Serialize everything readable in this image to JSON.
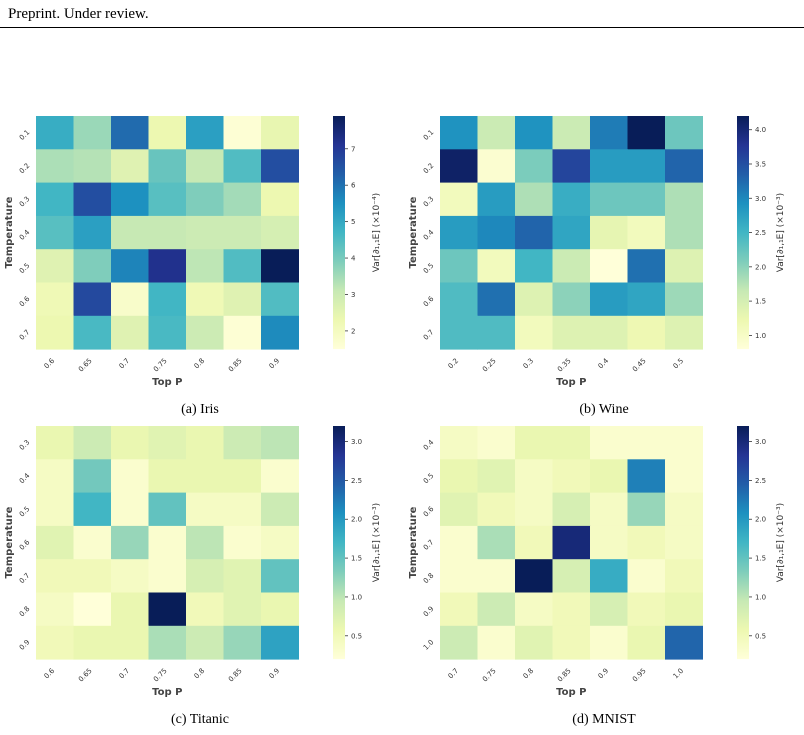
{
  "header": {
    "text": "Preprint. Under review."
  },
  "colormap": [
    "#ffffd9",
    "#edf8b1",
    "#c7e9b4",
    "#7fcdbb",
    "#41b6c4",
    "#1d91c0",
    "#225ea8",
    "#253494",
    "#081d58"
  ],
  "chart_data": [
    {
      "type": "heatmap",
      "caption": "(a) Iris",
      "xlabel": "Top P",
      "ylabel": "Temperature",
      "x": [
        "0.6",
        "0.65",
        "0.7",
        "0.75",
        "0.8",
        "0.85",
        "0.9"
      ],
      "y": [
        "0.1",
        "0.2",
        "0.3",
        "0.4",
        "0.5",
        "0.6",
        "0.7"
      ],
      "colorbar_label": "Var[∂₁,₁E] (×10⁻⁴)",
      "colorbar_ticks": [
        "2",
        "3",
        "4",
        "5",
        "6",
        "7"
      ],
      "vmin": 1.5,
      "vmax": 7.9,
      "values": [
        [
          4.9,
          3.6,
          6.1,
          2.3,
          5.2,
          1.6,
          2.4
        ],
        [
          3.4,
          3.3,
          2.6,
          4.2,
          3.1,
          4.5,
          6.6
        ],
        [
          4.7,
          6.6,
          5.5,
          4.4,
          3.9,
          3.5,
          2.3
        ],
        [
          4.4,
          5.2,
          3.1,
          3.1,
          3.0,
          3.0,
          2.8
        ],
        [
          2.6,
          3.9,
          5.7,
          7.2,
          3.2,
          4.5,
          7.9
        ],
        [
          2.2,
          6.7,
          1.8,
          4.7,
          2.2,
          2.6,
          4.5
        ],
        [
          2.3,
          4.6,
          2.6,
          4.6,
          3.0,
          1.6,
          5.6
        ]
      ]
    },
    {
      "type": "heatmap",
      "caption": "(b) Wine",
      "xlabel": "Top P",
      "ylabel": "Temperature",
      "x": [
        "0.2",
        "0.25",
        "0.3",
        "0.35",
        "0.4",
        "0.45",
        "0.5"
      ],
      "y": [
        "0.1",
        "0.2",
        "0.3",
        "0.4",
        "0.5",
        "0.6",
        "0.7"
      ],
      "colorbar_label": "Var[∂₁,₁E] (×10⁻³)",
      "colorbar_ticks": [
        "1.0",
        "1.5",
        "2.0",
        "2.5",
        "3.0",
        "3.5",
        "4.0"
      ],
      "vmin": 0.8,
      "vmax": 4.2,
      "values": [
        [
          2.9,
          1.6,
          2.9,
          1.6,
          3.1,
          4.2,
          2.2
        ],
        [
          4.1,
          0.9,
          2.1,
          3.6,
          2.8,
          2.8,
          3.3
        ],
        [
          1.1,
          2.8,
          1.8,
          2.6,
          2.2,
          2.2,
          1.8
        ],
        [
          2.8,
          3.0,
          3.3,
          2.7,
          1.3,
          1.1,
          1.8
        ],
        [
          2.2,
          1.1,
          2.5,
          1.6,
          0.8,
          3.2,
          1.4
        ],
        [
          2.4,
          3.2,
          1.4,
          2.0,
          2.8,
          2.7,
          1.9
        ],
        [
          2.4,
          2.4,
          1.1,
          1.4,
          1.4,
          1.2,
          1.4
        ]
      ]
    },
    {
      "type": "heatmap",
      "caption": "(c) Titanic",
      "xlabel": "Top P",
      "ylabel": "Temperature",
      "x": [
        "0.6",
        "0.65",
        "0.7",
        "0.75",
        "0.8",
        "0.85",
        "0.9"
      ],
      "y": [
        "0.3",
        "0.4",
        "0.5",
        "0.6",
        "0.7",
        "0.8",
        "0.9"
      ],
      "colorbar_label": "Var[∂₁,₁E] (×10⁻³)",
      "colorbar_ticks": [
        "0.5",
        "1.0",
        "1.5",
        "2.0",
        "2.5",
        "3.0"
      ],
      "vmin": 0.2,
      "vmax": 3.2,
      "values": [
        [
          0.6,
          0.9,
          0.6,
          0.7,
          0.6,
          0.9,
          1.0
        ],
        [
          0.4,
          1.4,
          0.3,
          0.6,
          0.6,
          0.6,
          0.3
        ],
        [
          0.4,
          1.7,
          0.3,
          1.5,
          0.4,
          0.4,
          0.9
        ],
        [
          0.7,
          0.3,
          1.2,
          0.3,
          1.0,
          0.3,
          0.4
        ],
        [
          0.5,
          0.5,
          0.4,
          0.3,
          0.8,
          0.7,
          1.5
        ],
        [
          0.4,
          0.2,
          0.6,
          3.2,
          0.5,
          0.7,
          0.6
        ],
        [
          0.5,
          0.6,
          0.6,
          1.1,
          0.9,
          1.2,
          1.9
        ]
      ]
    },
    {
      "type": "heatmap",
      "caption": "(d) MNIST",
      "xlabel": "Top P",
      "ylabel": "Temperature",
      "x": [
        "0.7",
        "0.75",
        "0.8",
        "0.85",
        "0.9",
        "0.95",
        "1.0"
      ],
      "y": [
        "0.4",
        "0.5",
        "0.6",
        "0.7",
        "0.8",
        "0.9",
        "1.0"
      ],
      "colorbar_label": "Var[∂₁,₁E] (×10⁻³)",
      "colorbar_ticks": [
        "0.5",
        "1.0",
        "1.5",
        "2.0",
        "2.5",
        "3.0"
      ],
      "vmin": 0.2,
      "vmax": 3.2,
      "values": [
        [
          0.4,
          0.3,
          0.6,
          0.6,
          0.3,
          0.3,
          0.3
        ],
        [
          0.6,
          0.7,
          0.4,
          0.5,
          0.6,
          2.2,
          0.3
        ],
        [
          0.7,
          0.5,
          0.4,
          0.8,
          0.4,
          1.2,
          0.4
        ],
        [
          0.3,
          1.1,
          0.5,
          3.0,
          0.4,
          0.5,
          0.4
        ],
        [
          0.3,
          0.3,
          3.2,
          0.8,
          1.8,
          0.3,
          0.5
        ],
        [
          0.5,
          0.9,
          0.4,
          0.5,
          0.8,
          0.5,
          0.6
        ],
        [
          0.9,
          0.3,
          0.7,
          0.5,
          0.3,
          0.6,
          2.4
        ]
      ]
    }
  ]
}
